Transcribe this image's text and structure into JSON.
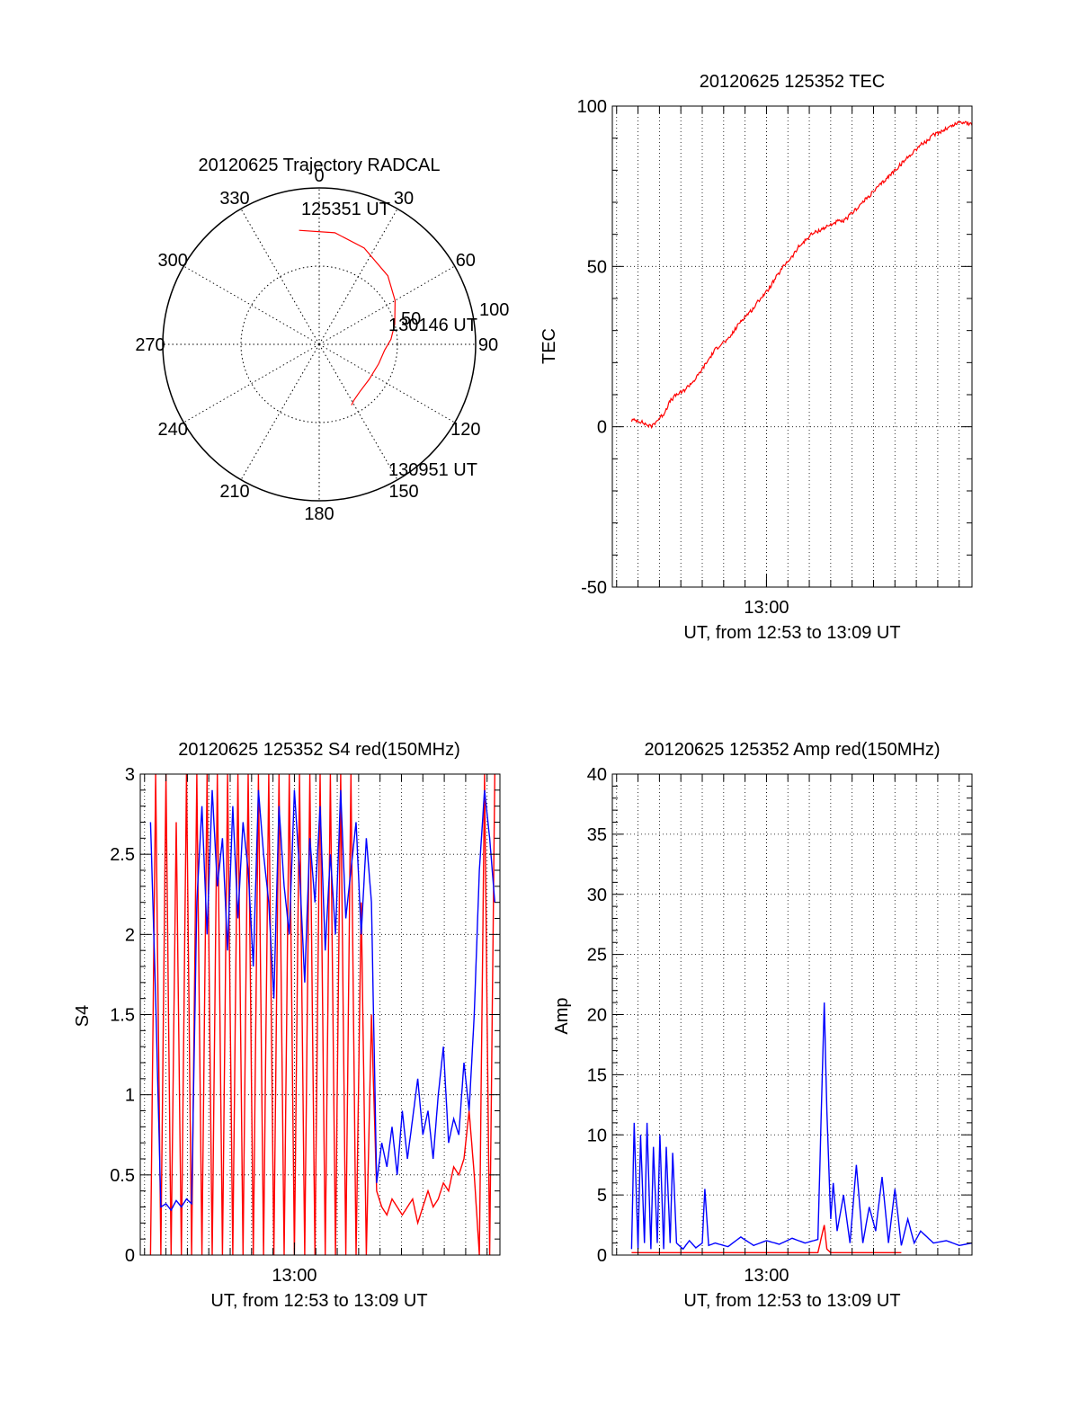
{
  "chart_data": [
    {
      "id": "polar",
      "type": "scatter",
      "title": "20120625 Trajectory RADCAL",
      "axis_type": "polar-sky",
      "zenith_rings": [
        50,
        100
      ],
      "azimuth_labels": [
        "0",
        "30",
        "60",
        "90",
        "120",
        "150",
        "180",
        "210",
        "240",
        "270",
        "300",
        "330"
      ],
      "ring_labels": [
        "50",
        "100"
      ],
      "annotations": [
        "125351 UT",
        "130146 UT",
        "130951 UT"
      ],
      "series": [
        {
          "color": "#ff0000",
          "points": [
            [
              -10,
              74
            ],
            [
              8,
              72
            ],
            [
              25,
              68
            ],
            [
              45,
              62
            ],
            [
              60,
              56
            ],
            [
              75,
              50
            ],
            [
              86,
              46
            ],
            [
              95,
              42
            ],
            [
              108,
              40
            ],
            [
              125,
              39
            ],
            [
              140,
              40
            ],
            [
              148,
              42
            ],
            [
              152,
              44
            ]
          ]
        }
      ]
    },
    {
      "id": "tec",
      "type": "line",
      "title": "20120625 125352 TEC",
      "xlabel": "UT, from 12:53 to 13:09 UT",
      "ylabel": "TEC",
      "xlim": [
        12.88,
        13.16
      ],
      "ylim": [
        -50,
        100
      ],
      "yticks": [
        -50,
        0,
        50,
        100
      ],
      "xtick_labels": [
        {
          "x": 13.0,
          "label": "13:00"
        }
      ],
      "grid": true,
      "series": [
        {
          "color": "#ff0000",
          "x": [
            12.895,
            12.9,
            12.905,
            12.91,
            12.915,
            12.92,
            12.925,
            12.93,
            12.935,
            12.94,
            12.945,
            12.95,
            12.955,
            12.96,
            12.965,
            12.97,
            12.975,
            12.98,
            12.985,
            12.99,
            12.995,
            13.0,
            13.005,
            13.01,
            13.015,
            13.02,
            13.025,
            13.03,
            13.035,
            13.04,
            13.045,
            13.05,
            13.055,
            13.06,
            13.065,
            13.07,
            13.075,
            13.08,
            13.085,
            13.09,
            13.095,
            13.1,
            13.105,
            13.11,
            13.115,
            13.12,
            13.125,
            13.13,
            13.135,
            13.14,
            13.145,
            13.15,
            13.155,
            13.16
          ],
          "y": [
            2,
            2,
            1,
            0,
            2,
            4,
            8,
            10,
            11,
            13,
            15,
            18,
            21,
            24,
            26,
            27,
            30,
            33,
            35,
            37,
            40,
            42,
            45,
            48,
            51,
            53,
            56,
            58,
            60,
            61,
            62,
            63,
            64,
            64,
            66,
            68,
            70,
            72,
            74,
            76,
            78,
            80,
            82,
            84,
            86,
            88,
            89,
            91,
            92,
            93,
            94,
            95,
            95,
            94
          ]
        }
      ]
    },
    {
      "id": "s4",
      "type": "line",
      "title": "20120625 125352 S4 red(150MHz)",
      "xlabel": "UT, from 12:53 to 13:09 UT",
      "ylabel": "S4",
      "xlim": [
        12.88,
        13.16
      ],
      "ylim": [
        0,
        3
      ],
      "yticks": [
        0,
        0.5,
        1,
        1.5,
        2,
        2.5,
        3
      ],
      "xtick_labels": [
        {
          "x": 13.0,
          "label": "13:00"
        }
      ],
      "grid": true,
      "series": [
        {
          "color": "#ff0000",
          "x": [
            12.888,
            12.892,
            12.896,
            12.9,
            12.904,
            12.908,
            12.912,
            12.916,
            12.92,
            12.924,
            12.928,
            12.932,
            12.936,
            12.94,
            12.944,
            12.948,
            12.952,
            12.956,
            12.96,
            12.964,
            12.968,
            12.972,
            12.976,
            12.98,
            12.984,
            12.988,
            12.992,
            12.996,
            13.0,
            13.004,
            13.008,
            13.012,
            13.016,
            13.02,
            13.024,
            13.028,
            13.032,
            13.036,
            13.04,
            13.044,
            13.048,
            13.052,
            13.056,
            13.06,
            13.064,
            13.068,
            13.072,
            13.076,
            13.08,
            13.084,
            13.088,
            13.092,
            13.096,
            13.1,
            13.104,
            13.108,
            13.112,
            13.116,
            13.12,
            13.124,
            13.128,
            13.132,
            13.136,
            13.14,
            13.144,
            13.148,
            13.152,
            13.156
          ],
          "y": [
            0,
            3,
            0,
            3,
            0,
            2.7,
            0,
            3,
            0,
            3,
            0,
            3,
            0,
            3,
            0,
            3,
            0,
            3,
            0,
            3,
            0,
            3,
            0,
            3,
            0,
            3,
            0,
            3,
            0,
            3,
            0,
            3,
            0,
            3,
            0,
            3,
            0,
            3,
            0,
            3,
            0,
            2.2,
            0,
            1.5,
            0.4,
            0.3,
            0.25,
            0.35,
            0.3,
            0.25,
            0.3,
            0.35,
            0.2,
            0.3,
            0.4,
            0.3,
            0.35,
            0.45,
            0.4,
            0.55,
            0.5,
            0.6,
            0.9,
            0.5,
            0,
            3,
            0,
            3
          ]
        },
        {
          "color": "#0000ff",
          "x": [
            12.888,
            12.892,
            12.896,
            12.9,
            12.904,
            12.908,
            12.912,
            12.916,
            12.92,
            12.924,
            12.928,
            12.932,
            12.936,
            12.94,
            12.944,
            12.948,
            12.952,
            12.956,
            12.96,
            12.964,
            12.968,
            12.972,
            12.976,
            12.98,
            12.984,
            12.988,
            12.992,
            12.996,
            13.0,
            13.004,
            13.008,
            13.012,
            13.016,
            13.02,
            13.024,
            13.028,
            13.032,
            13.036,
            13.04,
            13.044,
            13.048,
            13.052,
            13.056,
            13.06,
            13.064,
            13.068,
            13.072,
            13.076,
            13.08,
            13.084,
            13.088,
            13.092,
            13.096,
            13.1,
            13.104,
            13.108,
            13.112,
            13.116,
            13.12,
            13.124,
            13.128,
            13.132,
            13.136,
            13.14,
            13.144,
            13.148,
            13.152,
            13.156
          ],
          "y": [
            2.7,
            1.6,
            0.3,
            0.32,
            0.28,
            0.34,
            0.3,
            0.35,
            0.32,
            2.2,
            2.8,
            2.0,
            2.9,
            2.3,
            2.6,
            1.9,
            2.8,
            2.1,
            2.7,
            2.4,
            1.8,
            2.9,
            2.5,
            2.2,
            1.6,
            2.8,
            2.3,
            2.0,
            2.9,
            2.4,
            1.7,
            2.6,
            2.2,
            2.8,
            1.9,
            2.5,
            2.0,
            2.9,
            2.1,
            2.4,
            2.7,
            2.0,
            2.6,
            2.2,
            0.45,
            0.7,
            0.55,
            0.8,
            0.5,
            0.9,
            0.6,
            0.85,
            1.1,
            0.75,
            0.9,
            0.6,
            1.0,
            1.3,
            0.7,
            0.85,
            0.75,
            1.2,
            0.9,
            1.5,
            2.4,
            2.9,
            2.6,
            2.2
          ]
        }
      ]
    },
    {
      "id": "amp",
      "type": "line",
      "title": "20120625 125352 Amp red(150MHz)",
      "xlabel": "UT, from 12:53 to 13:09 UT",
      "ylabel": "Amp",
      "xlim": [
        12.88,
        13.16
      ],
      "ylim": [
        0,
        40
      ],
      "yticks": [
        0,
        5,
        10,
        15,
        20,
        25,
        30,
        35,
        40
      ],
      "xtick_labels": [
        {
          "x": 13.0,
          "label": "13:00"
        }
      ],
      "grid": true,
      "series": [
        {
          "color": "#0000ff",
          "x": [
            12.895,
            12.897,
            12.9,
            12.902,
            12.905,
            12.907,
            12.91,
            12.912,
            12.915,
            12.917,
            12.92,
            12.922,
            12.925,
            12.927,
            12.93,
            12.935,
            12.94,
            12.945,
            12.95,
            12.952,
            12.955,
            12.96,
            12.97,
            12.98,
            12.99,
            13.0,
            13.01,
            13.02,
            13.03,
            13.04,
            13.045,
            13.047,
            13.05,
            13.052,
            13.055,
            13.06,
            13.065,
            13.07,
            13.075,
            13.08,
            13.085,
            13.09,
            13.095,
            13.1,
            13.105,
            13.11,
            13.115,
            13.12,
            13.13,
            13.14,
            13.15,
            13.16
          ],
          "y": [
            0.5,
            11,
            0.5,
            10,
            1,
            11,
            0.5,
            9,
            1,
            10,
            0.5,
            9,
            1,
            8.5,
            1,
            0.5,
            1.2,
            0.6,
            1,
            5.5,
            0.8,
            1,
            0.7,
            1.5,
            0.8,
            1.2,
            0.9,
            1.4,
            1.0,
            1.3,
            21,
            12,
            3,
            6,
            2,
            5,
            1,
            7.5,
            1,
            4,
            2,
            6.5,
            1,
            5.5,
            0.8,
            3,
            1,
            2,
            1,
            1.2,
            0.8,
            1
          ]
        },
        {
          "color": "#ff0000",
          "x": [
            12.895,
            12.9,
            12.91,
            12.92,
            12.93,
            12.935,
            12.94,
            13.04,
            13.045,
            13.047,
            13.05,
            13.1,
            13.105
          ],
          "y": [
            0.2,
            0.2,
            0.2,
            0.2,
            0.2,
            0.2,
            0.2,
            0.2,
            2.5,
            0.5,
            0.2,
            0.2,
            0.2
          ]
        }
      ]
    }
  ]
}
